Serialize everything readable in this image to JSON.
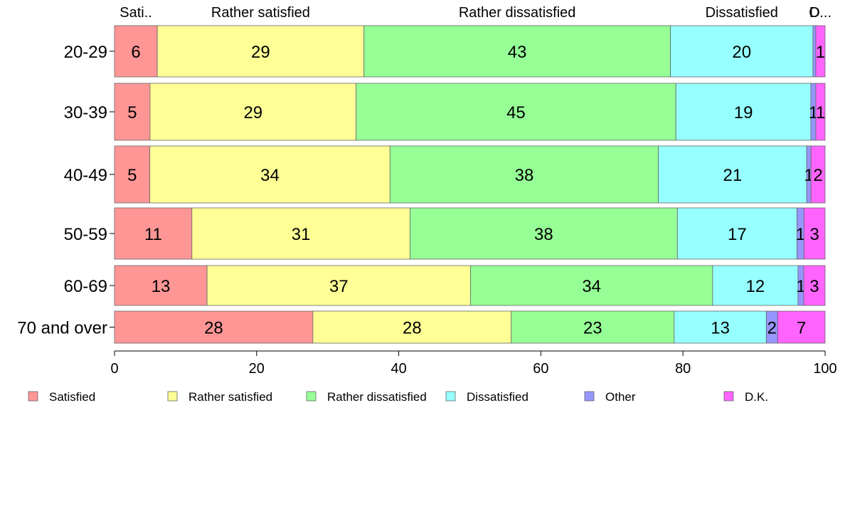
{
  "chart_data": {
    "type": "bar",
    "orientation": "horizontal",
    "stacked": true,
    "percent": true,
    "categories": [
      "20-29",
      "30-39",
      "40-49",
      "50-59",
      "60-69",
      "70 and over"
    ],
    "series": [
      {
        "name": "Satisfied",
        "color": "#ff9696",
        "values": [
          6,
          5,
          5,
          11,
          13,
          28
        ]
      },
      {
        "name": "Rather satisfied",
        "color": "#ffff96",
        "values": [
          29,
          29,
          34,
          31,
          37,
          28
        ]
      },
      {
        "name": "Rather dissatisfied",
        "color": "#96ff96",
        "values": [
          43,
          45,
          38,
          38,
          34,
          23
        ]
      },
      {
        "name": "Dissatisfied",
        "color": "#96ffff",
        "values": [
          20,
          19,
          21,
          17,
          12,
          13
        ]
      },
      {
        "name": "Other",
        "color": "#9696ff",
        "values": [
          0.4,
          0.7,
          0.6,
          1,
          0.8,
          1.6
        ]
      },
      {
        "name": "D.K.",
        "color": "#ff64ff",
        "values": [
          1.3,
          1.3,
          2,
          3,
          3,
          6.7
        ]
      }
    ],
    "data_labels": [
      [
        "6",
        "29",
        "43",
        "20",
        "",
        "1"
      ],
      [
        "5",
        "29",
        "45",
        "19",
        "1",
        "1"
      ],
      [
        "5",
        "34",
        "38",
        "21",
        "1",
        "2"
      ],
      [
        "11",
        "31",
        "38",
        "17",
        "1",
        "3"
      ],
      [
        "13",
        "37",
        "34",
        "12",
        "1",
        "3"
      ],
      [
        "28",
        "28",
        "23",
        "13",
        "2",
        "7"
      ]
    ],
    "top_labels": [
      "Sati..",
      "Rather satisfied",
      "Rather dissatisfied",
      "Dissatisfied",
      "O",
      "D..."
    ],
    "xlim": [
      0,
      100
    ],
    "xticks": [
      "0",
      "20",
      "40",
      "60",
      "80",
      "100"
    ],
    "grid": false,
    "legend_position": "bottom"
  }
}
